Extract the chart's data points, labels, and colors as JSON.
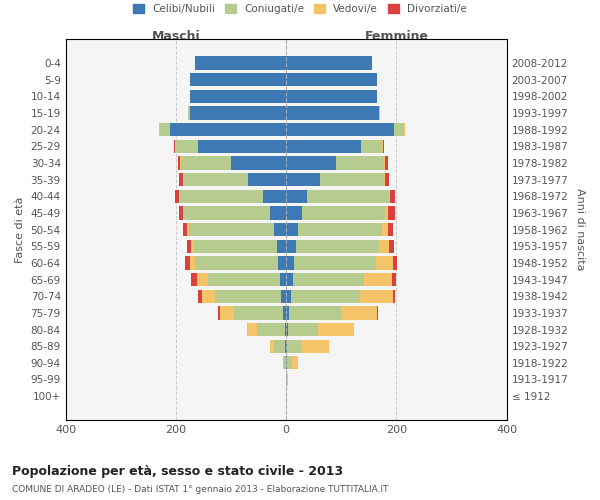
{
  "age_groups": [
    "100+",
    "95-99",
    "90-94",
    "85-89",
    "80-84",
    "75-79",
    "70-74",
    "65-69",
    "60-64",
    "55-59",
    "50-54",
    "45-49",
    "40-44",
    "35-39",
    "30-34",
    "25-29",
    "20-24",
    "15-19",
    "10-14",
    "5-9",
    "0-4"
  ],
  "birth_years": [
    "≤ 1912",
    "1913-1917",
    "1918-1922",
    "1923-1927",
    "1928-1932",
    "1933-1937",
    "1938-1942",
    "1943-1947",
    "1948-1952",
    "1953-1957",
    "1958-1962",
    "1963-1967",
    "1968-1972",
    "1973-1977",
    "1978-1982",
    "1983-1987",
    "1988-1992",
    "1993-1997",
    "1998-2002",
    "2003-2007",
    "2008-2012"
  ],
  "males": {
    "celibi": [
      0,
      0,
      1,
      2,
      3,
      5,
      10,
      12,
      15,
      17,
      22,
      30,
      42,
      70,
      100,
      160,
      210,
      175,
      175,
      175,
      165
    ],
    "coniugati": [
      0,
      1,
      5,
      20,
      50,
      90,
      120,
      130,
      150,
      150,
      155,
      155,
      150,
      115,
      90,
      40,
      18,
      4,
      0,
      0,
      0
    ],
    "vedovi": [
      0,
      0,
      0,
      8,
      18,
      25,
      22,
      20,
      10,
      5,
      3,
      2,
      2,
      2,
      2,
      2,
      2,
      0,
      0,
      0,
      0
    ],
    "divorziati": [
      0,
      0,
      0,
      0,
      0,
      3,
      8,
      10,
      8,
      8,
      8,
      8,
      8,
      8,
      5,
      2,
      0,
      0,
      0,
      0,
      0
    ]
  },
  "females": {
    "nubili": [
      0,
      0,
      2,
      2,
      3,
      5,
      8,
      12,
      15,
      18,
      22,
      28,
      38,
      62,
      90,
      135,
      195,
      168,
      165,
      165,
      155
    ],
    "coniugate": [
      0,
      1,
      8,
      25,
      55,
      95,
      125,
      130,
      148,
      150,
      152,
      152,
      148,
      115,
      88,
      38,
      18,
      3,
      0,
      0,
      0
    ],
    "vedove": [
      0,
      2,
      12,
      50,
      65,
      65,
      60,
      50,
      30,
      18,
      10,
      5,
      3,
      2,
      2,
      2,
      2,
      0,
      0,
      0,
      0
    ],
    "divorziate": [
      0,
      0,
      0,
      0,
      0,
      2,
      5,
      8,
      8,
      10,
      10,
      12,
      8,
      8,
      5,
      2,
      0,
      0,
      0,
      0,
      0
    ]
  },
  "colors": {
    "celibi_nubili": "#3d7ab5",
    "coniugati": "#b5cc8e",
    "vedovi": "#f5c469",
    "divorziati": "#d94040"
  },
  "title": "Popolazione per età, sesso e stato civile - 2013",
  "subtitle": "COMUNE DI ARADEO (LE) - Dati ISTAT 1° gennaio 2013 - Elaborazione TUTTITALIA.IT",
  "xlabel_left": "Maschi",
  "xlabel_right": "Femmine",
  "ylabel_left": "Fasce di età",
  "ylabel_right": "Anni di nascita",
  "xlim": 400,
  "bg_color": "#ffffff",
  "plot_bg_color": "#f5f5f5",
  "legend_labels": [
    "Celibi/Nubili",
    "Coniugati/e",
    "Vedovi/e",
    "Divorziati/e"
  ]
}
